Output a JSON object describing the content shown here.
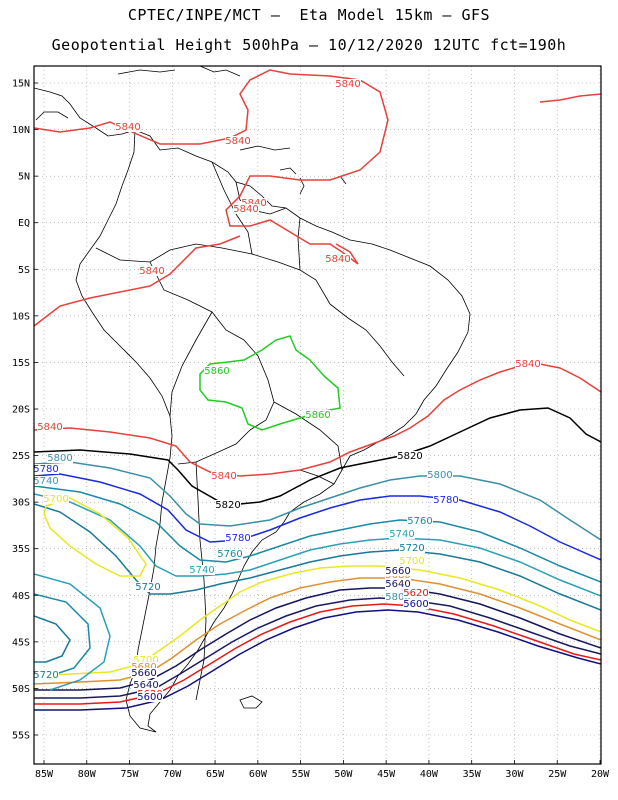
{
  "title_line1": "CPTEC/INPE/MCT –  Eta Model 15km – GFS",
  "title_line2": "Geopotential Height 500hPa – 10/12/2020 12UTC fct=190h",
  "lat_labels": [
    "15N",
    "10N",
    "5N",
    "EQ",
    "5S",
    "10S",
    "15S",
    "20S",
    "25S",
    "30S",
    "35S",
    "40S",
    "45S",
    "50S",
    "55S"
  ],
  "lon_labels": [
    "85W",
    "80W",
    "75W",
    "70W",
    "65W",
    "60W",
    "55W",
    "50W",
    "45W",
    "40W",
    "35W",
    "30W",
    "25W",
    "20W"
  ],
  "colors": {
    "c5840": "#e8403a",
    "c5860": "#22cc22",
    "c5820": "#000000",
    "c5800": "#3a8fa8",
    "c5780": "#1a2adc",
    "c5760": "#1a8aa8",
    "c5740": "#2aa0b8",
    "c5720": "#1a7898",
    "c5700": "#e8e820",
    "c5680": "#e09030",
    "c5660": "#141460",
    "c5640": "#1a1a60",
    "c5620": "#e81818",
    "c5600": "#101080"
  },
  "contour_labels": [
    {
      "text": "5840",
      "color": "#e8403a"
    },
    {
      "text": "5840",
      "color": "#e8403a"
    },
    {
      "text": "5840",
      "color": "#e8403a"
    },
    {
      "text": "5840",
      "color": "#e8403a"
    },
    {
      "text": "5840",
      "color": "#e8403a"
    },
    {
      "text": "5840",
      "color": "#e8403a"
    },
    {
      "text": "5840",
      "color": "#e8403a"
    },
    {
      "text": "5840",
      "color": "#e8403a"
    },
    {
      "text": "5840",
      "color": "#e8403a"
    },
    {
      "text": "5840",
      "color": "#e8403a"
    },
    {
      "text": "5860",
      "color": "#22cc22"
    },
    {
      "text": "5860",
      "color": "#22cc22"
    },
    {
      "text": "5820",
      "color": "#000000"
    },
    {
      "text": "5820",
      "color": "#000000"
    },
    {
      "text": "5800",
      "color": "#3a8fa8"
    },
    {
      "text": "5800",
      "color": "#3a8fa8"
    },
    {
      "text": "5800",
      "color": "#3a8fa8"
    },
    {
      "text": "5780",
      "color": "#1a2adc"
    },
    {
      "text": "5780",
      "color": "#1a2adc"
    },
    {
      "text": "5780",
      "color": "#1a2adc"
    },
    {
      "text": "5760",
      "color": "#1a8aa8"
    },
    {
      "text": "5760",
      "color": "#1a8aa8"
    },
    {
      "text": "5740",
      "color": "#2aa0b8"
    },
    {
      "text": "5740",
      "color": "#2aa0b8"
    },
    {
      "text": "5740",
      "color": "#2aa0b8"
    },
    {
      "text": "5720",
      "color": "#1a7898"
    },
    {
      "text": "5720",
      "color": "#1a7898"
    },
    {
      "text": "5720",
      "color": "#1a7898"
    },
    {
      "text": "5700",
      "color": "#e8e820"
    },
    {
      "text": "5700",
      "color": "#e8e820"
    },
    {
      "text": "5700",
      "color": "#e8e820"
    },
    {
      "text": "5680",
      "color": "#e09030"
    },
    {
      "text": "5680",
      "color": "#e09030"
    },
    {
      "text": "5660",
      "color": "#141460"
    },
    {
      "text": "5660",
      "color": "#141460"
    },
    {
      "text": "5640",
      "color": "#1a1a60"
    },
    {
      "text": "5640",
      "color": "#1a1a60"
    },
    {
      "text": "5620",
      "color": "#e81818"
    },
    {
      "text": "5620",
      "color": "#e81818"
    },
    {
      "text": "5600",
      "color": "#101080"
    },
    {
      "text": "5600",
      "color": "#101080"
    }
  ]
}
